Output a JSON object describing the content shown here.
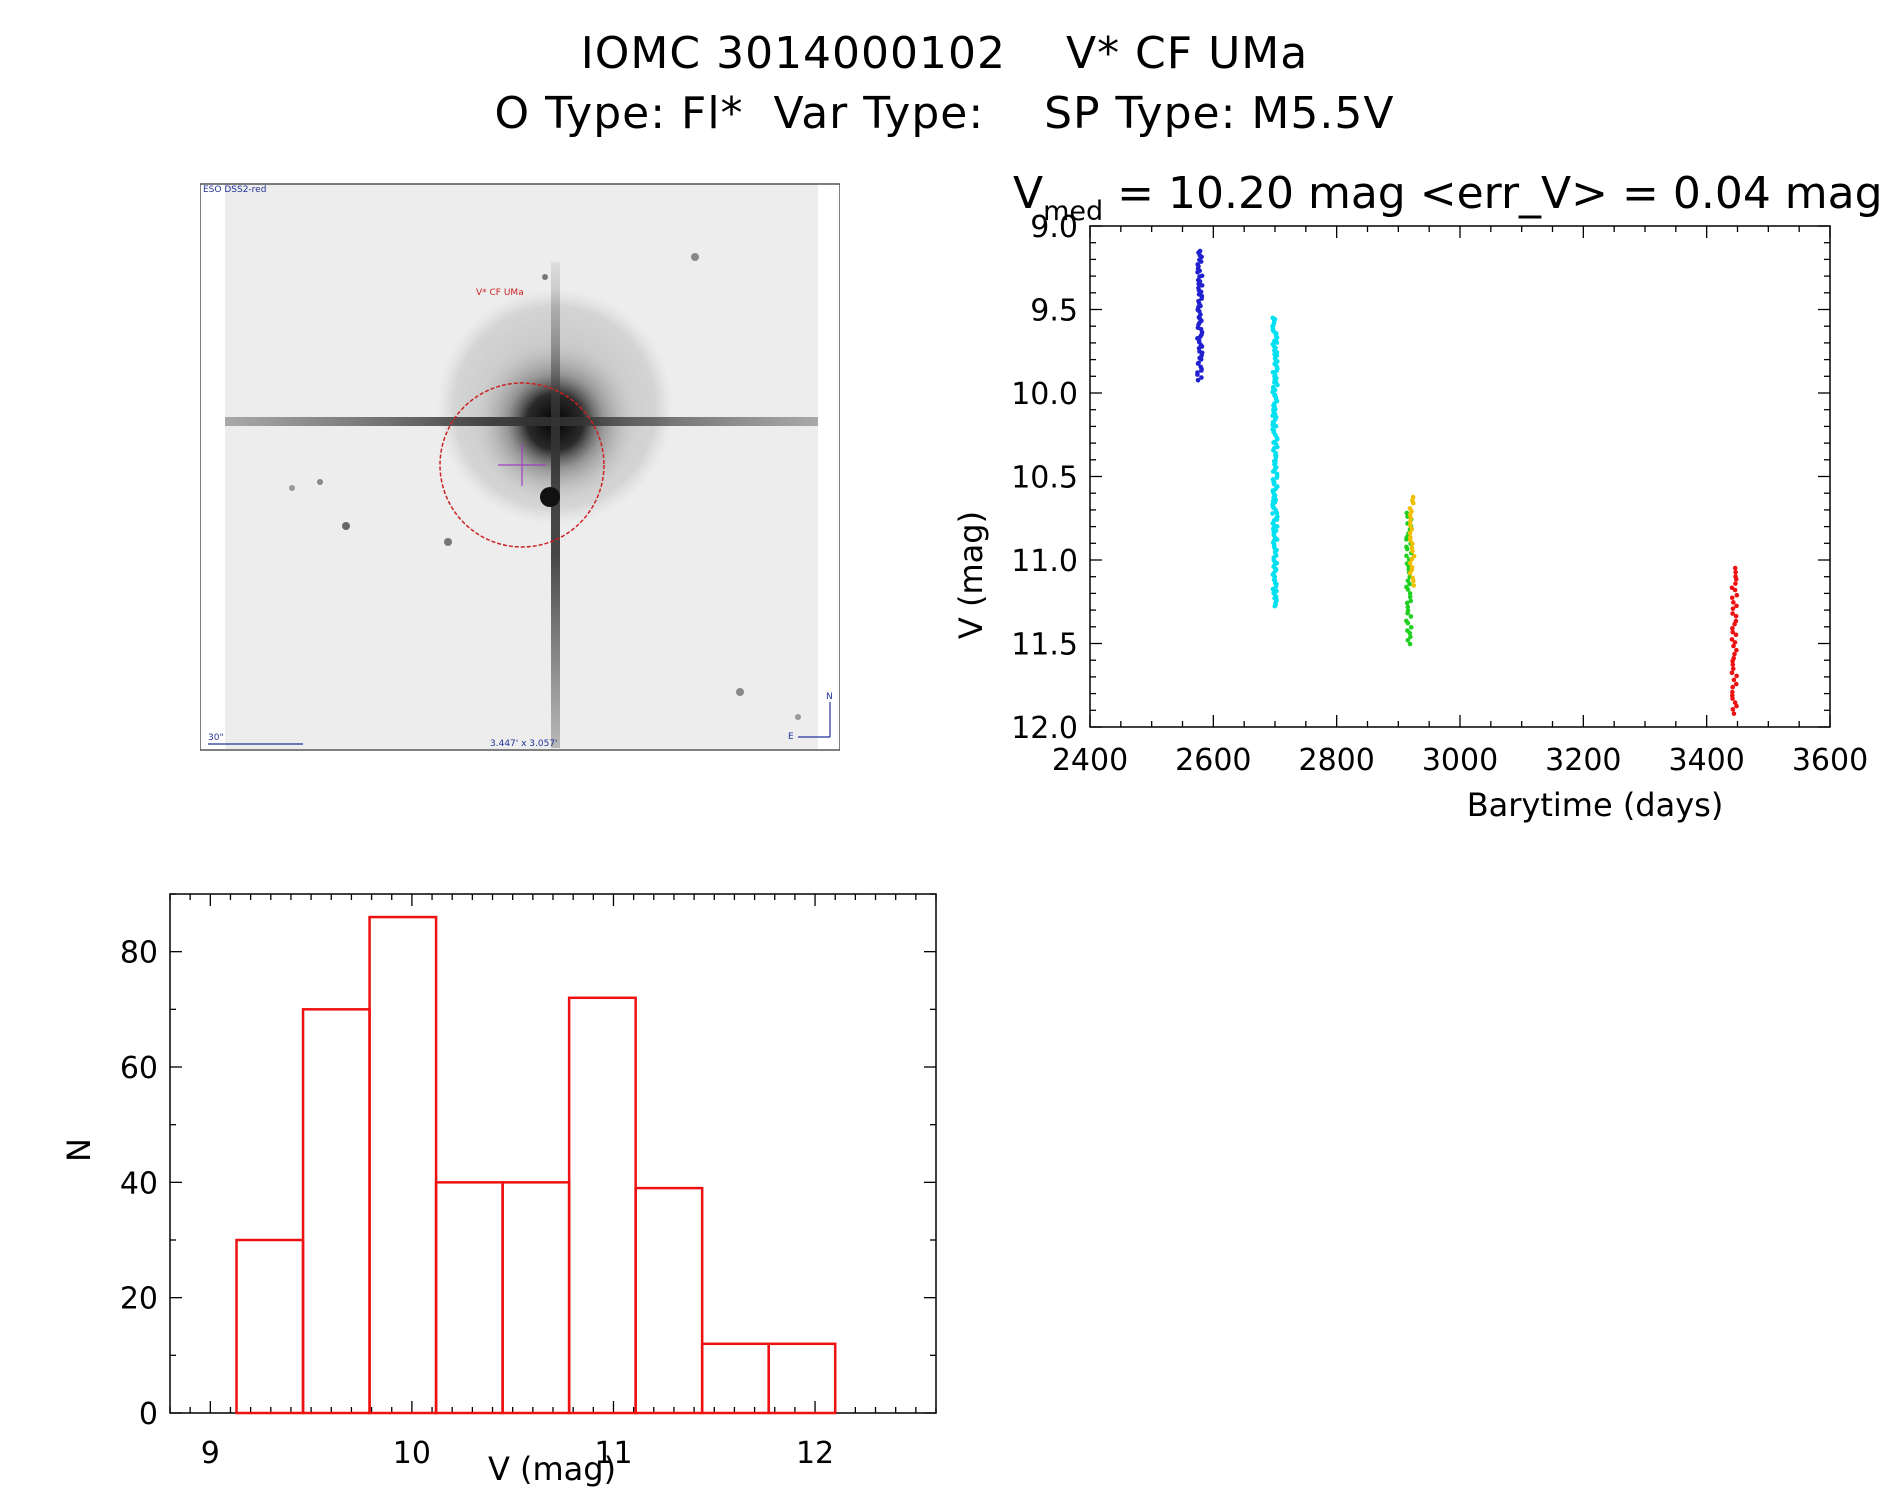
{
  "header": {
    "title_line1": "IOMC 3014000102    V* CF UMa",
    "title_line2": "O Type: Fl*  Var Type:    SP Type: M5.5V"
  },
  "finder": {
    "survey_label": "ESO DSS2-red",
    "target_label": "V* CF UMa",
    "scale_label": "30\"",
    "fov_label": "3.447' x 3.057'",
    "north_label": "N",
    "east_label": "E"
  },
  "colors": {
    "blue": "#2020d0",
    "cyan": "#00e0f0",
    "green": "#20d020",
    "yellow": "#f0c000",
    "red": "#ee1111",
    "hist": "#ee1111",
    "marker": "#cc2222"
  },
  "chart_data": [
    {
      "type": "scatter",
      "title": "V_med = 10.20 mag <err_V> = 0.04 mag",
      "title_parts": {
        "v": "V",
        "sub": "med",
        "rest": " = 10.20 mag <err_V> = 0.04 mag"
      },
      "xlabel": "Barytime (days)",
      "ylabel": "V (mag)",
      "xlim": [
        2400,
        3600
      ],
      "ylim": [
        12.0,
        9.0
      ],
      "x_reversed": false,
      "y_reversed": true,
      "x_ticks": [
        2400,
        2600,
        2800,
        3000,
        3200,
        3400,
        3600
      ],
      "y_ticks": [
        "9.0",
        "9.5",
        "10.0",
        "10.5",
        "11.0",
        "11.5",
        "12.0"
      ],
      "groups": [
        {
          "color": "blue",
          "x": 2578,
          "y_min": 9.15,
          "y_max": 9.92,
          "n": 60
        },
        {
          "color": "cyan",
          "x": 2700,
          "y_min": 9.55,
          "y_max": 11.28,
          "n": 160
        },
        {
          "color": "green",
          "x": 2917,
          "y_min": 10.72,
          "y_max": 11.5,
          "n": 40
        },
        {
          "color": "yellow",
          "x": 2922,
          "y_min": 10.62,
          "y_max": 11.15,
          "n": 25
        },
        {
          "color": "red",
          "x": 3445,
          "y_min": 11.05,
          "y_max": 11.92,
          "n": 40
        }
      ]
    },
    {
      "type": "bar",
      "title": "",
      "xlabel": "V (mag)",
      "ylabel": "N",
      "xlim": [
        8.8,
        12.6
      ],
      "ylim": [
        0,
        90
      ],
      "x_ticks": [
        9,
        10,
        11,
        12
      ],
      "y_ticks": [
        0,
        20,
        40,
        60,
        80
      ],
      "bin_edges": [
        9.13,
        9.46,
        9.79,
        10.12,
        10.45,
        10.78,
        11.11,
        11.44,
        11.77,
        12.1
      ],
      "values": [
        30,
        70,
        86,
        40,
        40,
        72,
        39,
        12,
        12
      ]
    }
  ]
}
